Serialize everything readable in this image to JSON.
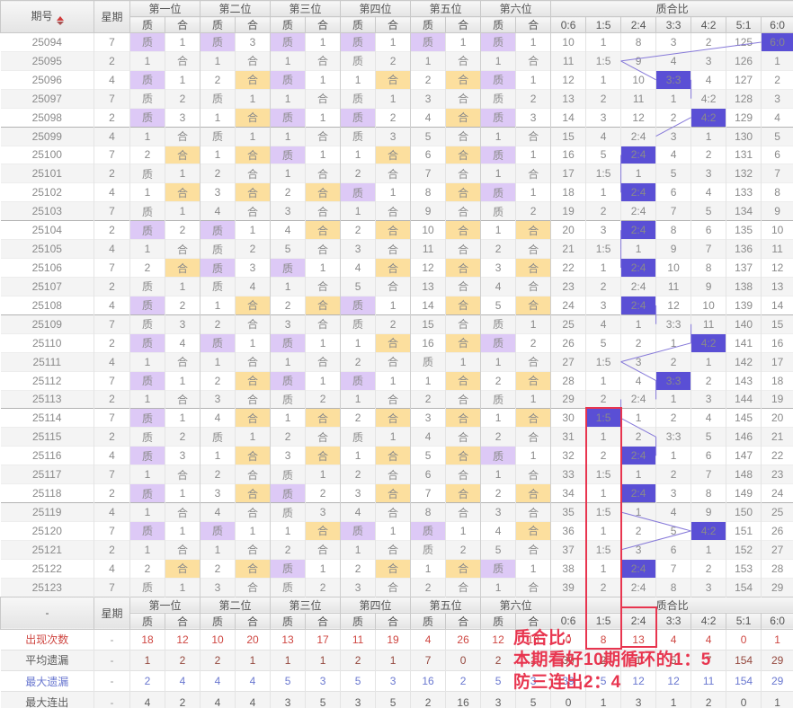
{
  "header": {
    "period_label": "期号",
    "week_label": "星期",
    "position_groups": [
      "第一位",
      "第二位",
      "第三位",
      "第四位",
      "第五位",
      "第六位"
    ],
    "zhi_label": "质",
    "he_label": "合",
    "ratio_group": "质合比",
    "ratio_cols": [
      "0:6",
      "1:5",
      "2:4",
      "3:3",
      "4:2",
      "5:1",
      "6:0"
    ],
    "bottom_period_label": "-"
  },
  "rows": [
    {
      "p": "25094",
      "w": "7",
      "c": [
        "质",
        "1",
        "质",
        "3",
        "质",
        "1",
        "质",
        "1",
        "质",
        "1",
        "质",
        "1"
      ],
      "r": [
        "10",
        "1",
        "8",
        "3",
        "2",
        "125",
        "6:0"
      ]
    },
    {
      "p": "25095",
      "w": "2",
      "c": [
        "1",
        "合",
        "1",
        "合",
        "1",
        "合",
        "质",
        "2",
        "1",
        "合",
        "1",
        "合"
      ],
      "r": [
        "11",
        "1:5",
        "9",
        "4",
        "3",
        "126",
        "1"
      ]
    },
    {
      "p": "25096",
      "w": "4",
      "c": [
        "质",
        "1",
        "2",
        "合",
        "质",
        "1",
        "1",
        "合",
        "2",
        "合",
        "质",
        "1"
      ],
      "r": [
        "12",
        "1",
        "10",
        "3:3",
        "4",
        "127",
        "2"
      ]
    },
    {
      "p": "25097",
      "w": "7",
      "c": [
        "质",
        "2",
        "质",
        "1",
        "1",
        "合",
        "质",
        "1",
        "3",
        "合",
        "质",
        "2"
      ],
      "r": [
        "13",
        "2",
        "11",
        "1",
        "4:2",
        "128",
        "3"
      ]
    },
    {
      "p": "25098",
      "w": "2",
      "c": [
        "质",
        "3",
        "1",
        "合",
        "质",
        "1",
        "质",
        "2",
        "4",
        "合",
        "质",
        "3"
      ],
      "r": [
        "14",
        "3",
        "12",
        "2",
        "4:2",
        "129",
        "4"
      ]
    },
    {
      "p": "25099",
      "w": "4",
      "c": [
        "1",
        "合",
        "质",
        "1",
        "1",
        "合",
        "质",
        "3",
        "5",
        "合",
        "1",
        "合"
      ],
      "r": [
        "15",
        "4",
        "2:4",
        "3",
        "1",
        "130",
        "5"
      ]
    },
    {
      "p": "25100",
      "w": "7",
      "c": [
        "2",
        "合",
        "1",
        "合",
        "质",
        "1",
        "1",
        "合",
        "6",
        "合",
        "质",
        "1"
      ],
      "r": [
        "16",
        "5",
        "2:4",
        "4",
        "2",
        "131",
        "6"
      ]
    },
    {
      "p": "25101",
      "w": "2",
      "c": [
        "质",
        "1",
        "2",
        "合",
        "1",
        "合",
        "2",
        "合",
        "7",
        "合",
        "1",
        "合"
      ],
      "r": [
        "17",
        "1:5",
        "1",
        "5",
        "3",
        "132",
        "7"
      ]
    },
    {
      "p": "25102",
      "w": "4",
      "c": [
        "1",
        "合",
        "3",
        "合",
        "2",
        "合",
        "质",
        "1",
        "8",
        "合",
        "质",
        "1"
      ],
      "r": [
        "18",
        "1",
        "2:4",
        "6",
        "4",
        "133",
        "8"
      ]
    },
    {
      "p": "25103",
      "w": "7",
      "c": [
        "质",
        "1",
        "4",
        "合",
        "3",
        "合",
        "1",
        "合",
        "9",
        "合",
        "质",
        "2"
      ],
      "r": [
        "19",
        "2",
        "2:4",
        "7",
        "5",
        "134",
        "9"
      ]
    },
    {
      "p": "25104",
      "w": "2",
      "c": [
        "质",
        "2",
        "质",
        "1",
        "4",
        "合",
        "2",
        "合",
        "10",
        "合",
        "1",
        "合"
      ],
      "r": [
        "20",
        "3",
        "2:4",
        "8",
        "6",
        "135",
        "10"
      ]
    },
    {
      "p": "25105",
      "w": "4",
      "c": [
        "1",
        "合",
        "质",
        "2",
        "5",
        "合",
        "3",
        "合",
        "11",
        "合",
        "2",
        "合"
      ],
      "r": [
        "21",
        "1:5",
        "1",
        "9",
        "7",
        "136",
        "11"
      ]
    },
    {
      "p": "25106",
      "w": "7",
      "c": [
        "2",
        "合",
        "质",
        "3",
        "质",
        "1",
        "4",
        "合",
        "12",
        "合",
        "3",
        "合"
      ],
      "r": [
        "22",
        "1",
        "2:4",
        "10",
        "8",
        "137",
        "12"
      ]
    },
    {
      "p": "25107",
      "w": "2",
      "c": [
        "质",
        "1",
        "质",
        "4",
        "1",
        "合",
        "5",
        "合",
        "13",
        "合",
        "4",
        "合"
      ],
      "r": [
        "23",
        "2",
        "2:4",
        "11",
        "9",
        "138",
        "13"
      ]
    },
    {
      "p": "25108",
      "w": "4",
      "c": [
        "质",
        "2",
        "1",
        "合",
        "2",
        "合",
        "质",
        "1",
        "14",
        "合",
        "5",
        "合"
      ],
      "r": [
        "24",
        "3",
        "2:4",
        "12",
        "10",
        "139",
        "14"
      ]
    },
    {
      "p": "25109",
      "w": "7",
      "c": [
        "质",
        "3",
        "2",
        "合",
        "3",
        "合",
        "质",
        "2",
        "15",
        "合",
        "质",
        "1"
      ],
      "r": [
        "25",
        "4",
        "1",
        "3:3",
        "11",
        "140",
        "15"
      ]
    },
    {
      "p": "25110",
      "w": "2",
      "c": [
        "质",
        "4",
        "质",
        "1",
        "质",
        "1",
        "1",
        "合",
        "16",
        "合",
        "质",
        "2"
      ],
      "r": [
        "26",
        "5",
        "2",
        "1",
        "4:2",
        "141",
        "16"
      ]
    },
    {
      "p": "25111",
      "w": "4",
      "c": [
        "1",
        "合",
        "1",
        "合",
        "1",
        "合",
        "2",
        "合",
        "质",
        "1",
        "1",
        "合"
      ],
      "r": [
        "27",
        "1:5",
        "3",
        "2",
        "1",
        "142",
        "17"
      ]
    },
    {
      "p": "25112",
      "w": "7",
      "c": [
        "质",
        "1",
        "2",
        "合",
        "质",
        "1",
        "质",
        "1",
        "1",
        "合",
        "2",
        "合"
      ],
      "r": [
        "28",
        "1",
        "4",
        "3:3",
        "2",
        "143",
        "18"
      ]
    },
    {
      "p": "25113",
      "w": "2",
      "c": [
        "1",
        "合",
        "3",
        "合",
        "质",
        "2",
        "1",
        "合",
        "2",
        "合",
        "质",
        "1"
      ],
      "r": [
        "29",
        "2",
        "2:4",
        "1",
        "3",
        "144",
        "19"
      ]
    },
    {
      "p": "25114",
      "w": "7",
      "c": [
        "质",
        "1",
        "4",
        "合",
        "1",
        "合",
        "2",
        "合",
        "3",
        "合",
        "1",
        "合"
      ],
      "r": [
        "30",
        "1:5",
        "1",
        "2",
        "4",
        "145",
        "20"
      ]
    },
    {
      "p": "25115",
      "w": "2",
      "c": [
        "质",
        "2",
        "质",
        "1",
        "2",
        "合",
        "质",
        "1",
        "4",
        "合",
        "2",
        "合"
      ],
      "r": [
        "31",
        "1",
        "2",
        "3:3",
        "5",
        "146",
        "21"
      ]
    },
    {
      "p": "25116",
      "w": "4",
      "c": [
        "质",
        "3",
        "1",
        "合",
        "3",
        "合",
        "1",
        "合",
        "5",
        "合",
        "质",
        "1"
      ],
      "r": [
        "32",
        "2",
        "2:4",
        "1",
        "6",
        "147",
        "22"
      ]
    },
    {
      "p": "25117",
      "w": "7",
      "c": [
        "1",
        "合",
        "2",
        "合",
        "质",
        "1",
        "2",
        "合",
        "6",
        "合",
        "1",
        "合"
      ],
      "r": [
        "33",
        "1:5",
        "1",
        "2",
        "7",
        "148",
        "23"
      ]
    },
    {
      "p": "25118",
      "w": "2",
      "c": [
        "质",
        "1",
        "3",
        "合",
        "质",
        "2",
        "3",
        "合",
        "7",
        "合",
        "2",
        "合"
      ],
      "r": [
        "34",
        "1",
        "2:4",
        "3",
        "8",
        "149",
        "24"
      ]
    },
    {
      "p": "25119",
      "w": "4",
      "c": [
        "1",
        "合",
        "4",
        "合",
        "质",
        "3",
        "4",
        "合",
        "8",
        "合",
        "3",
        "合"
      ],
      "r": [
        "35",
        "1:5",
        "1",
        "4",
        "9",
        "150",
        "25"
      ]
    },
    {
      "p": "25120",
      "w": "7",
      "c": [
        "质",
        "1",
        "质",
        "1",
        "1",
        "合",
        "质",
        "1",
        "质",
        "1",
        "4",
        "合"
      ],
      "r": [
        "36",
        "1",
        "2",
        "5",
        "4:2",
        "151",
        "26"
      ]
    },
    {
      "p": "25121",
      "w": "2",
      "c": [
        "1",
        "合",
        "1",
        "合",
        "2",
        "合",
        "1",
        "合",
        "质",
        "2",
        "5",
        "合"
      ],
      "r": [
        "37",
        "1:5",
        "3",
        "6",
        "1",
        "152",
        "27"
      ]
    },
    {
      "p": "25122",
      "w": "4",
      "c": [
        "2",
        "合",
        "2",
        "合",
        "质",
        "1",
        "2",
        "合",
        "1",
        "合",
        "质",
        "1"
      ],
      "r": [
        "38",
        "1",
        "2:4",
        "7",
        "2",
        "153",
        "28"
      ]
    },
    {
      "p": "25123",
      "w": "7",
      "c": [
        "质",
        "1",
        "3",
        "合",
        "质",
        "2",
        "3",
        "合",
        "2",
        "合",
        "1",
        "合"
      ],
      "r": [
        "39",
        "2",
        "2:4",
        "8",
        "3",
        "154",
        "29"
      ]
    }
  ],
  "summary": [
    {
      "label": "出现次数",
      "week": "-",
      "pos": [
        "18",
        "12",
        "10",
        "20",
        "13",
        "17",
        "11",
        "19",
        "4",
        "26",
        "12",
        "18"
      ],
      "ratio": [
        "0",
        "8",
        "13",
        "4",
        "4",
        "0",
        "1"
      ]
    },
    {
      "label": "平均遗漏",
      "week": "-",
      "pos": [
        "1",
        "2",
        "2",
        "1",
        "1",
        "1",
        "2",
        "1",
        "7",
        "0",
        "2",
        "1"
      ],
      "ratio": [
        "39",
        "2",
        "1",
        "5",
        "7",
        "154",
        "29"
      ]
    },
    {
      "label": "最大遗漏",
      "week": "-",
      "pos": [
        "2",
        "4",
        "4",
        "4",
        "5",
        "3",
        "5",
        "3",
        "16",
        "2",
        "5",
        "3"
      ],
      "ratio": [
        "39",
        "5",
        "12",
        "12",
        "11",
        "154",
        "29"
      ]
    },
    {
      "label": "最大连出",
      "week": "-",
      "pos": [
        "4",
        "2",
        "4",
        "4",
        "3",
        "5",
        "3",
        "5",
        "2",
        "16",
        "3",
        "5"
      ],
      "ratio": [
        "0",
        "1",
        "3",
        "1",
        "2",
        "0",
        "1"
      ]
    }
  ],
  "annotation": {
    "line1": "质合比:",
    "line2": "本期看好10期循环的1：5",
    "line3": "防三连出2：4"
  },
  "colors": {
    "zhi_bg": "#ddc9f6",
    "zhi_text": "#9e55cf",
    "he_bg": "#fcdf9e",
    "he_text": "#e7891e",
    "hit_bg": "#5a4fd5",
    "hit_text": "#ffffff",
    "trend_line": "#8679d9",
    "annotation_red": "#e8354f",
    "count_red": "#cf4742",
    "max_miss_blue": "#6a78d0"
  }
}
